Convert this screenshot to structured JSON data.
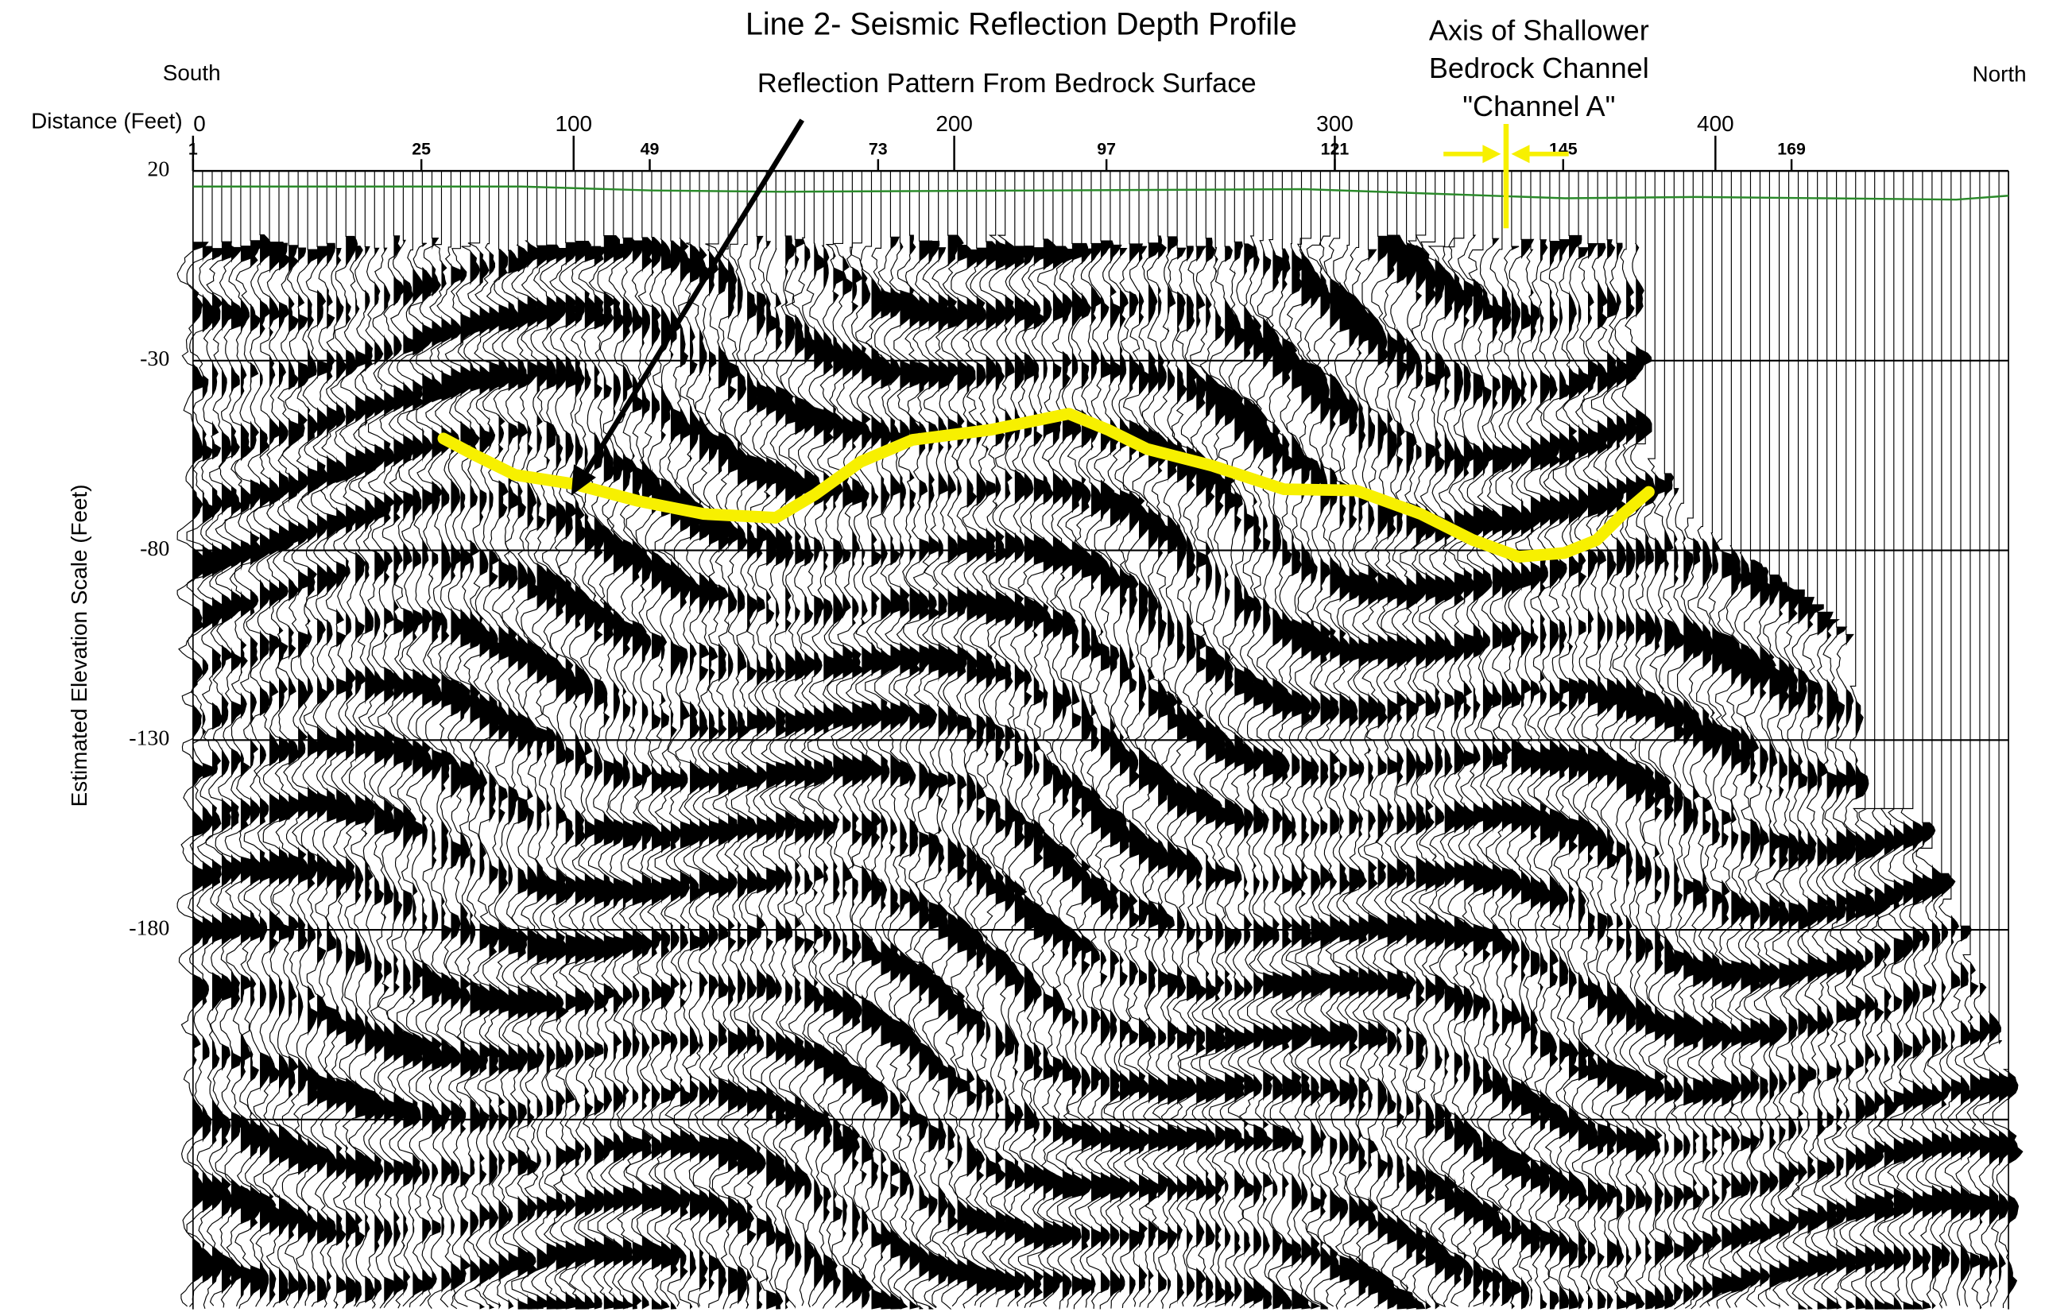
{
  "chart_data": {
    "type": "seismic",
    "title": "Line 2- Seismic Reflection Depth Profile",
    "reflection_label": "Reflection Pattern From Bedrock Surface",
    "channel_label": [
      "Axis of Shallower",
      "Bedrock Channel",
      "\"Channel A\""
    ],
    "channel_axis_x": 345,
    "left_label": "South",
    "right_label": "North",
    "xlabel": "Distance (Feet)",
    "ylabel": "Estimated Elevation Scale (Feet)",
    "xlim": [
      0,
      477
    ],
    "xticks": [
      0,
      100,
      200,
      300,
      400
    ],
    "x2lim": [
      1,
      191.8
    ],
    "x2ticks": [
      1,
      25,
      49,
      73,
      97,
      121,
      145,
      169
    ],
    "ylim": [
      -280,
      20
    ],
    "yticks": [
      20,
      -30,
      -80,
      -130,
      -180,
      {
        "value": -230,
        "label": null
      }
    ],
    "grid": true,
    "series": [
      {
        "color": "#f7f000",
        "x": [
          65.8,
          74.3,
          84.6,
          100,
          117.1,
          134.2,
          153.1,
          163.4,
          175.3,
          189,
          209.6,
          230.1,
          240.4,
          250.7,
          267.8,
          286.6,
          305.5,
          322.6,
          336.3,
          348.3,
          360.3,
          368.8,
          375.7,
          382.5
        ],
        "values": [
          -50.5,
          -55,
          -60.1,
          -62.5,
          -67,
          -70.4,
          -71.4,
          -65.3,
          -56.7,
          -50.9,
          -48.2,
          -44,
          -48.2,
          -53.3,
          -57.7,
          -63.9,
          -64.2,
          -70.4,
          -77.3,
          -81.7,
          -80.7,
          -77.3,
          -70.4,
          -64.6
        ]
      }
    ]
  }
}
